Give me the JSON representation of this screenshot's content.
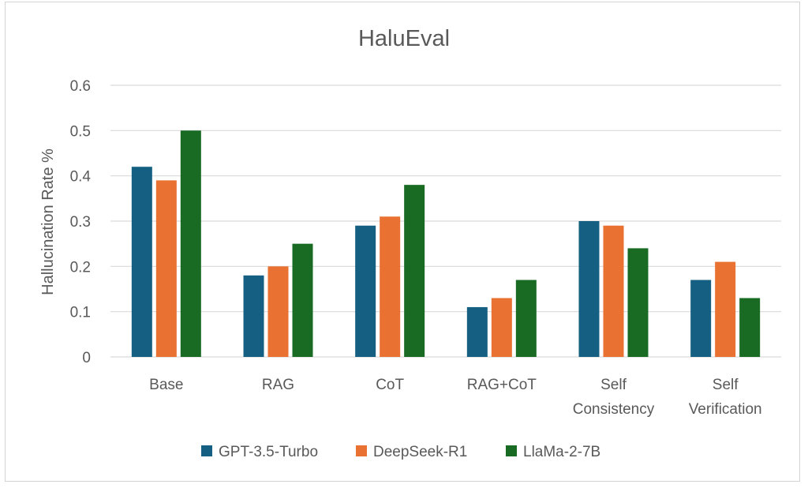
{
  "chart_data": {
    "type": "bar",
    "title": "HaluEval",
    "xlabel": "",
    "ylabel": "Hallucination Rate %",
    "ylim": [
      0,
      0.6
    ],
    "yticks": [
      "0",
      "0.1",
      "0.2",
      "0.3",
      "0.4",
      "0.5",
      "0.6"
    ],
    "grid": true,
    "legend_position": "bottom",
    "categories": [
      [
        "Base"
      ],
      [
        "RAG"
      ],
      [
        "CoT"
      ],
      [
        "RAG+CoT"
      ],
      [
        "Self",
        "Consistency"
      ],
      [
        "Self",
        "Verification"
      ]
    ],
    "series": [
      {
        "name": "GPT-3.5-Turbo",
        "color": "#156082",
        "values": [
          0.42,
          0.18,
          0.29,
          0.11,
          0.3,
          0.17
        ]
      },
      {
        "name": "DeepSeek-R1",
        "color": "#E97132",
        "values": [
          0.39,
          0.2,
          0.31,
          0.13,
          0.29,
          0.21
        ]
      },
      {
        "name": "LlaMa-2-7B",
        "color": "#196B24",
        "values": [
          0.5,
          0.25,
          0.38,
          0.17,
          0.24,
          0.13
        ]
      }
    ],
    "gridline_color": "#d9d9d9"
  }
}
